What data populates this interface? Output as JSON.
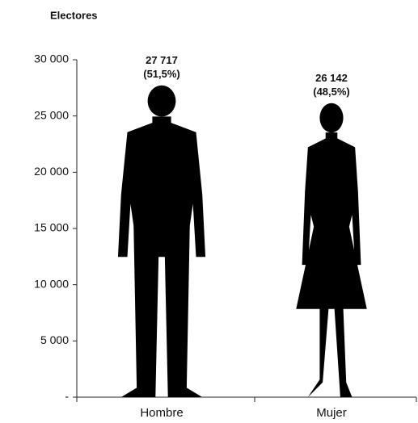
{
  "chart_data": {
    "type": "pictograph",
    "title": "Electores",
    "categories": [
      "Hombre",
      "Mujer"
    ],
    "values": [
      27717,
      26142
    ],
    "value_labels": [
      "27 717",
      "26 142"
    ],
    "percentages": [
      51.5,
      48.5
    ],
    "percentage_labels": [
      "(51,5%)",
      "(48,5%)"
    ],
    "color": "#000000",
    "ylim": [
      0,
      30000
    ],
    "yticks": [
      {
        "value": 0,
        "label": "-"
      },
      {
        "value": 5000,
        "label": "5 000"
      },
      {
        "value": 10000,
        "label": "10 000"
      },
      {
        "value": 15000,
        "label": "15 000"
      },
      {
        "value": 20000,
        "label": "20 000"
      },
      {
        "value": 25000,
        "label": "25 000"
      },
      {
        "value": 30000,
        "label": "30 000"
      }
    ]
  }
}
